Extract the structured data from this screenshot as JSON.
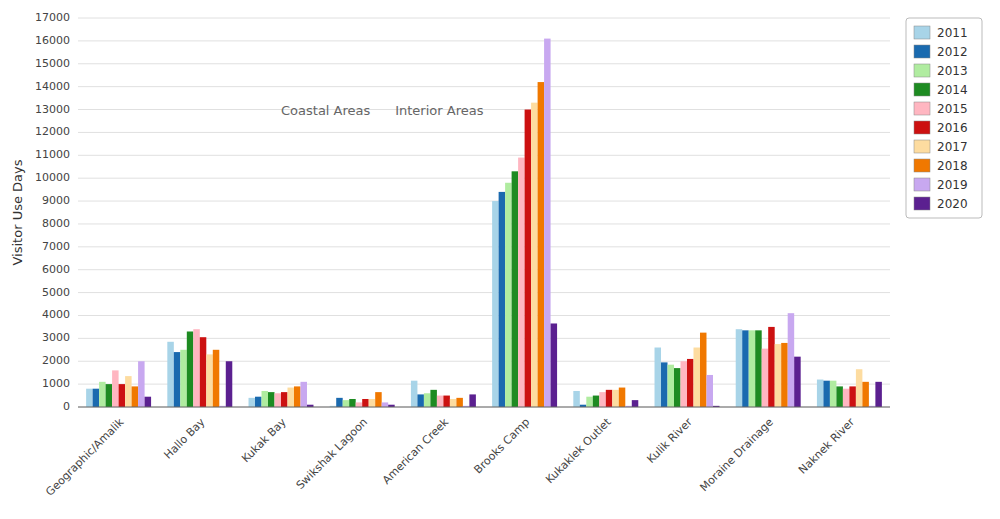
{
  "chart_data": {
    "type": "bar",
    "categories": [
      "Geographic/Amalik",
      "Hallo Bay",
      "Kukak Bay",
      "Swikshak Lagoon",
      "American Creek",
      "Brooks Camp",
      "Kukaklek Outlet",
      "Kulik River",
      "Moraine Drainage",
      "Naknek River"
    ],
    "series": [
      {
        "name": "2011",
        "color": "#A8D4E8",
        "values": [
          800,
          2850,
          400,
          50,
          1150,
          9000,
          700,
          2600,
          3400,
          1200
        ]
      },
      {
        "name": "2012",
        "color": "#1A6AAF",
        "values": [
          800,
          2400,
          450,
          400,
          550,
          9400,
          100,
          1950,
          3350,
          1150
        ]
      },
      {
        "name": "2013",
        "color": "#B0ECA0",
        "values": [
          1100,
          2500,
          700,
          300,
          600,
          9800,
          450,
          1850,
          3350,
          1150
        ]
      },
      {
        "name": "2014",
        "color": "#1E8B22",
        "values": [
          1000,
          3300,
          650,
          350,
          750,
          10300,
          500,
          1700,
          3350,
          900
        ]
      },
      {
        "name": "2015",
        "color": "#FFB6C1",
        "values": [
          1600,
          3400,
          600,
          200,
          500,
          10900,
          650,
          2000,
          2550,
          800
        ]
      },
      {
        "name": "2016",
        "color": "#CC1111",
        "values": [
          1000,
          3050,
          650,
          350,
          500,
          13000,
          750,
          2100,
          3500,
          900
        ]
      },
      {
        "name": "2017",
        "color": "#FDDCA0",
        "values": [
          1350,
          2300,
          850,
          350,
          350,
          13300,
          750,
          2600,
          2750,
          1650
        ]
      },
      {
        "name": "2018",
        "color": "#F07800",
        "values": [
          900,
          2500,
          900,
          650,
          400,
          14200,
          850,
          3250,
          2800,
          1100
        ]
      },
      {
        "name": "2019",
        "color": "#C8A8F0",
        "values": [
          2000,
          50,
          1100,
          200,
          50,
          16100,
          50,
          1400,
          4100,
          50
        ]
      },
      {
        "name": "2020",
        "color": "#5B2090",
        "values": [
          450,
          2000,
          100,
          100,
          550,
          3650,
          300,
          50,
          2200,
          1100
        ]
      }
    ],
    "ylabel": "Visitor Use Days",
    "ylim": [
      0,
      17000
    ],
    "yticks": [
      0,
      1000,
      2000,
      3000,
      4000,
      5000,
      6000,
      7000,
      8000,
      9000,
      10000,
      11000,
      12000,
      13000,
      14000,
      15000,
      16000,
      17000
    ],
    "annotations": [
      "Coastal Areas",
      "Interior Areas"
    ],
    "grid": true,
    "legend": "right"
  }
}
